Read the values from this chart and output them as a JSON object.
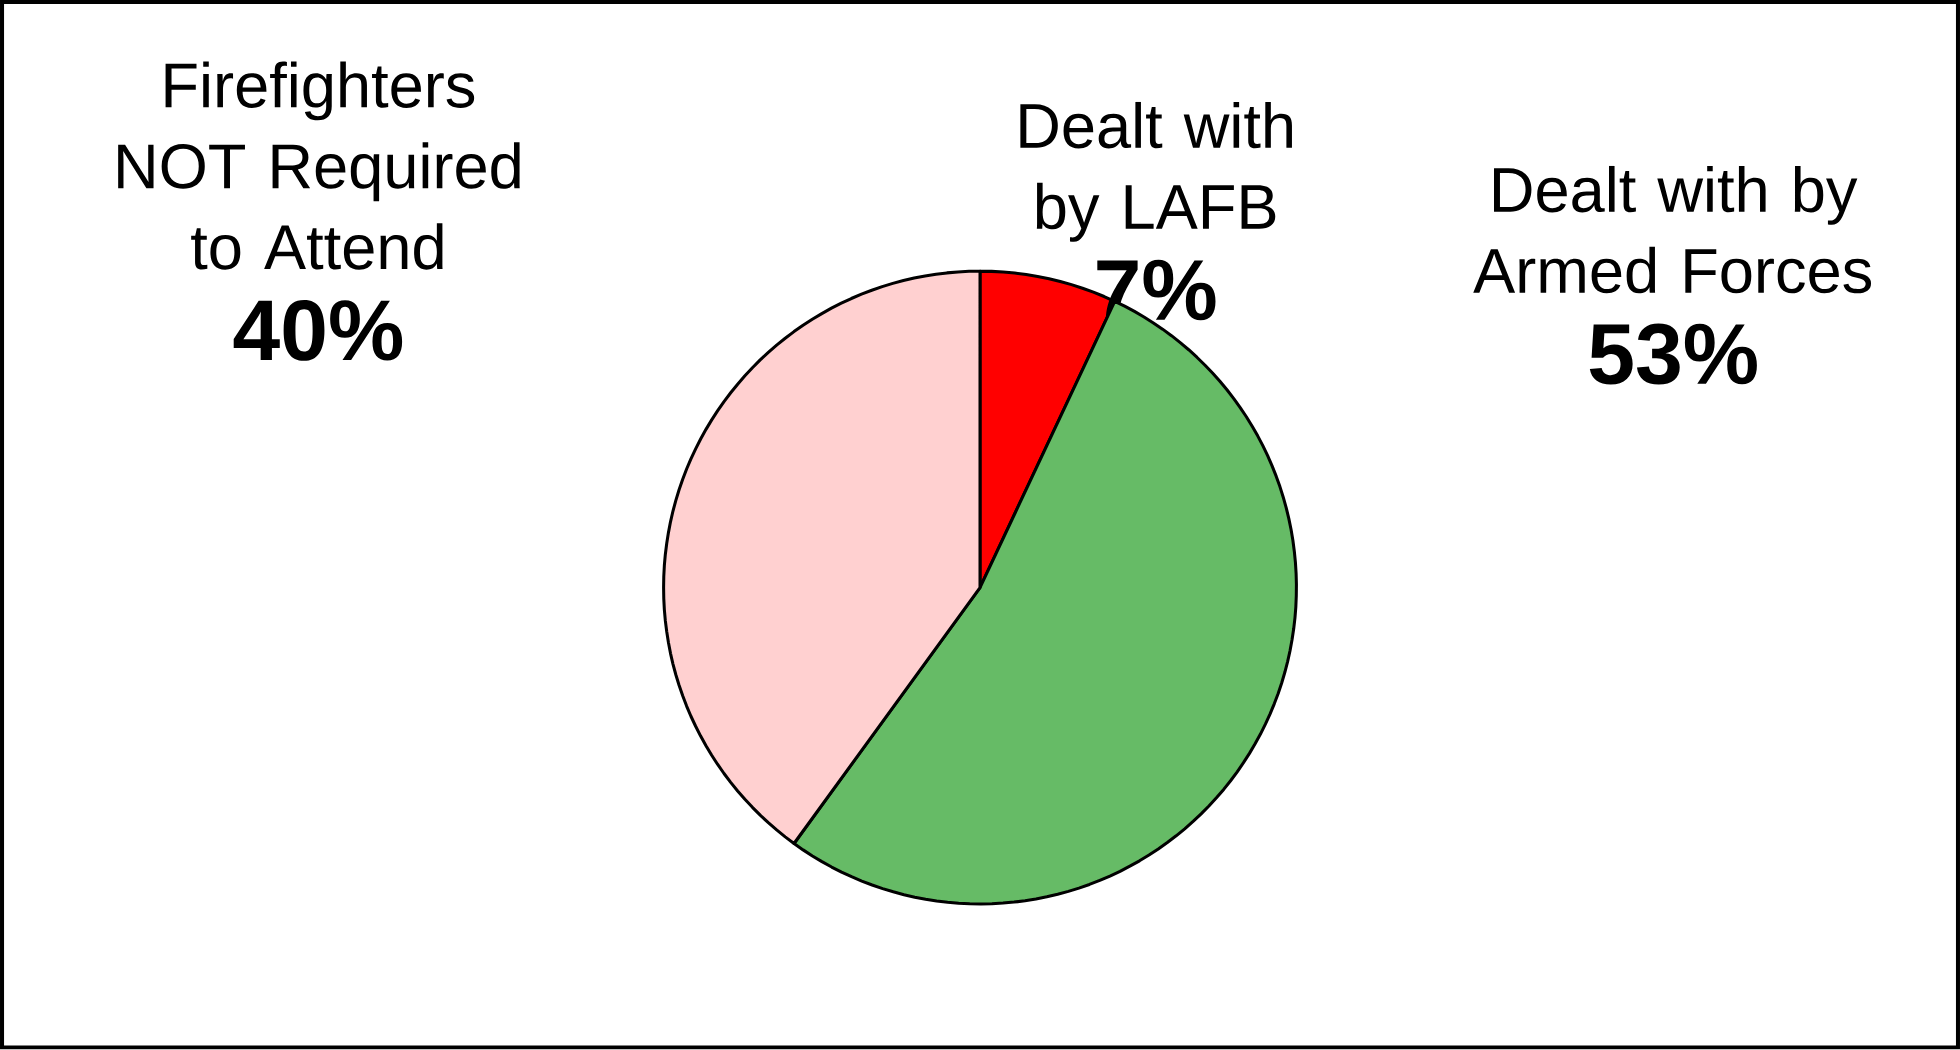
{
  "chart_data": {
    "type": "pie",
    "categories": [
      "Dealt with by LAFB",
      "Dealt with by Armed Forces",
      "Firefighters NOT Required to Attend"
    ],
    "values": [
      7,
      53,
      40
    ],
    "value_labels": [
      "7%",
      "53%",
      "40%"
    ],
    "data_labels": true,
    "colors": [
      "#ff0000",
      "#66bb66",
      "#ffd0d0"
    ]
  }
}
